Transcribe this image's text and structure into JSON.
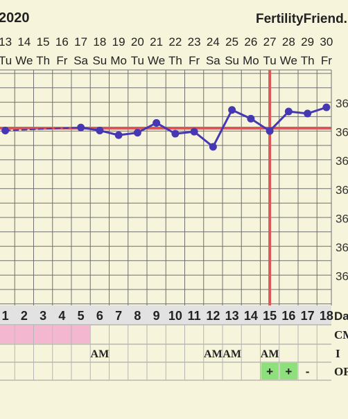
{
  "header": {
    "year": "2020",
    "brand": "FertilityFriend."
  },
  "colors": {
    "background": "#f7f4dc",
    "grid": "#6f6f6f",
    "line": "#4637b2",
    "redline": "#d9595a",
    "rowbg": "#e2e2e2",
    "pink": "#f3b8cf",
    "green": "#8ee07d"
  },
  "dates": [
    "13",
    "14",
    "15",
    "16",
    "17",
    "18",
    "19",
    "20",
    "21",
    "22",
    "23",
    "24",
    "25",
    "26",
    "27",
    "28",
    "29",
    "30"
  ],
  "weekdays": [
    "Tu",
    "We",
    "Th",
    "Fr",
    "Sa",
    "Su",
    "Mo",
    "Tu",
    "We",
    "Th",
    "Fr",
    "Sa",
    "Su",
    "Mo",
    "Tu",
    "We",
    "Th",
    "Fr"
  ],
  "y_tick_labels": [
    "36",
    "36",
    "36",
    "36",
    "36",
    "36",
    "36"
  ],
  "cycle_days": [
    "1",
    "2",
    "3",
    "4",
    "5",
    "6",
    "7",
    "8",
    "9",
    "10",
    "11",
    "12",
    "13",
    "14",
    "15",
    "16",
    "17",
    "18"
  ],
  "row_labels": {
    "day": "Da",
    "cm": "CM",
    "i": "I",
    "opk": "OP"
  },
  "intercourse_row": [
    "",
    "",
    "",
    "",
    "",
    "AM",
    "",
    "",
    "",
    "",
    "",
    "AM",
    "AM",
    "",
    "AM",
    "",
    "",
    ""
  ],
  "opk_row": [
    "",
    "",
    "",
    "",
    "",
    "",
    "",
    "",
    "",
    "",
    "",
    "",
    "",
    "",
    "+",
    "+",
    "-",
    ""
  ],
  "chart_data": {
    "type": "line",
    "x": [
      1,
      2,
      3,
      4,
      5,
      6,
      7,
      8,
      9,
      10,
      11,
      12,
      13,
      14,
      15,
      16,
      17,
      18
    ],
    "values": [
      0.515,
      null,
      null,
      null,
      0.62,
      0.515,
      0.355,
      0.44,
      0.78,
      0.405,
      0.475,
      -0.05,
      1.23,
      0.925,
      0.5,
      1.175,
      1.105,
      1.32
    ],
    "dashed_segment": [
      1,
      5
    ],
    "coverline_y": 0.6,
    "ovulation_day": 15,
    "ylim": [
      -0.5,
      1.5
    ],
    "grid": true
  }
}
